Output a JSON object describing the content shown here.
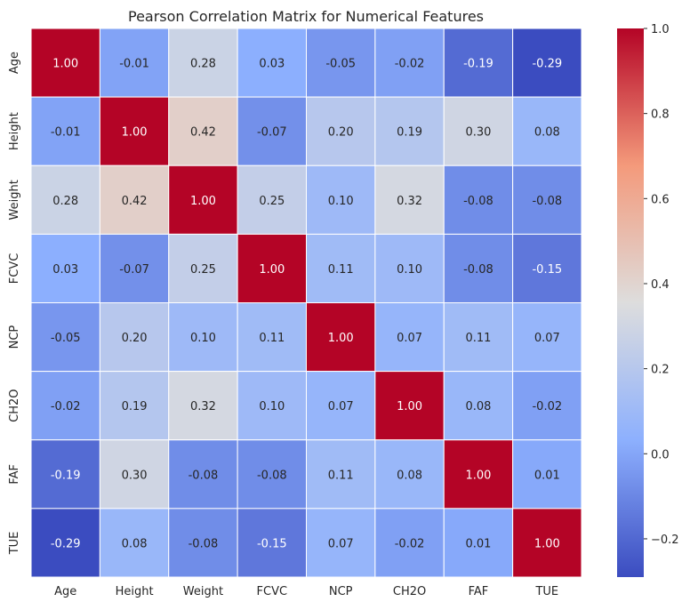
{
  "chart_data": {
    "type": "heatmap",
    "title": "Pearson Correlation Matrix for Numerical Features",
    "xlabel": "",
    "ylabel": "",
    "x_categories": [
      "Age",
      "Height",
      "Weight",
      "FCVC",
      "NCP",
      "CH2O",
      "FAF",
      "TUE"
    ],
    "y_categories": [
      "Age",
      "Height",
      "Weight",
      "FCVC",
      "NCP",
      "CH2O",
      "FAF",
      "TUE"
    ],
    "values": [
      [
        1.0,
        -0.01,
        0.28,
        0.03,
        -0.05,
        -0.02,
        -0.19,
        -0.29
      ],
      [
        -0.01,
        1.0,
        0.42,
        -0.07,
        0.2,
        0.19,
        0.3,
        0.08
      ],
      [
        0.28,
        0.42,
        1.0,
        0.25,
        0.1,
        0.32,
        -0.08,
        -0.08
      ],
      [
        0.03,
        -0.07,
        0.25,
        1.0,
        0.11,
        0.1,
        -0.08,
        -0.15
      ],
      [
        -0.05,
        0.2,
        0.1,
        0.11,
        1.0,
        0.07,
        0.11,
        0.07
      ],
      [
        -0.02,
        0.19,
        0.32,
        0.1,
        0.07,
        1.0,
        0.08,
        -0.02
      ],
      [
        -0.19,
        0.3,
        -0.08,
        -0.08,
        0.11,
        0.08,
        1.0,
        0.01
      ],
      [
        -0.29,
        0.08,
        -0.08,
        -0.15,
        0.07,
        -0.02,
        0.01,
        1.0
      ]
    ],
    "value_format": "0.00",
    "colormap": "coolwarm",
    "vmin": -0.29,
    "vmax": 1.0,
    "colorbar_ticks": [
      "-0.2",
      "0.0",
      "0.2",
      "0.4",
      "0.6",
      "0.8",
      "1.0"
    ],
    "colorbar_position": "right",
    "grid": false,
    "cell_border_color": "#ffffff"
  }
}
